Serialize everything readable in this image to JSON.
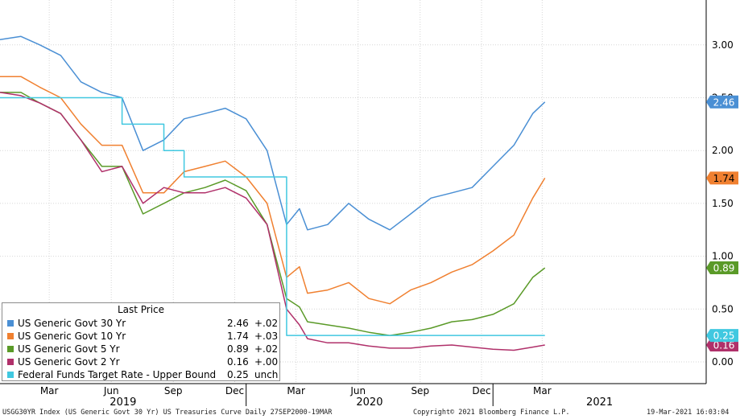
{
  "chart_data": {
    "type": "line",
    "title": "",
    "xlabel": "",
    "ylabel": "",
    "ylim": [
      -0.05,
      3.4
    ],
    "y_axis_position": "right",
    "y_ticks": [
      "0.00",
      "0.50",
      "1.00",
      "1.50",
      "2.00",
      "2.50",
      "3.00"
    ],
    "x_month_ticks": [
      "Mar",
      "Jun",
      "Sep",
      "Dec",
      "Mar",
      "Jun",
      "Sep",
      "Dec",
      "Mar"
    ],
    "x_year_labels": [
      "2019",
      "2020",
      "2021"
    ],
    "grid": true,
    "legend_position": "bottom-left",
    "x": [
      "2019-01-01",
      "2019-02-01",
      "2019-03-01",
      "2019-04-01",
      "2019-05-01",
      "2019-06-01",
      "2019-07-01",
      "2019-08-01",
      "2019-09-01",
      "2019-10-01",
      "2019-11-01",
      "2019-12-01",
      "2020-01-01",
      "2020-02-01",
      "2020-03-01",
      "2020-03-20",
      "2020-04-01",
      "2020-05-01",
      "2020-06-01",
      "2020-07-01",
      "2020-08-01",
      "2020-09-01",
      "2020-10-01",
      "2020-11-01",
      "2020-12-01",
      "2021-01-01",
      "2021-02-01",
      "2021-03-01",
      "2021-03-19"
    ],
    "series": [
      {
        "name": "US Generic Govt 30 Yr",
        "color": "#4a8fd4",
        "last": "2.46",
        "change": "+.02",
        "values": [
          3.05,
          3.08,
          3.0,
          2.9,
          2.65,
          2.55,
          2.5,
          2.0,
          2.1,
          2.3,
          2.35,
          2.4,
          2.3,
          2.0,
          1.3,
          1.45,
          1.25,
          1.3,
          1.5,
          1.35,
          1.25,
          1.4,
          1.55,
          1.6,
          1.65,
          1.85,
          2.05,
          2.35,
          2.46
        ]
      },
      {
        "name": "US Generic Govt 10 Yr",
        "color": "#f08030",
        "last": "1.74",
        "change": "+.03",
        "values": [
          2.7,
          2.7,
          2.6,
          2.5,
          2.25,
          2.05,
          2.05,
          1.6,
          1.6,
          1.8,
          1.85,
          1.9,
          1.75,
          1.5,
          0.8,
          0.9,
          0.65,
          0.68,
          0.75,
          0.6,
          0.55,
          0.68,
          0.75,
          0.85,
          0.92,
          1.05,
          1.2,
          1.55,
          1.74
        ]
      },
      {
        "name": "US Generic Govt 5 Yr",
        "color": "#5a9a28",
        "last": "0.89",
        "change": "+.02",
        "values": [
          2.55,
          2.55,
          2.45,
          2.35,
          2.1,
          1.85,
          1.85,
          1.4,
          1.5,
          1.6,
          1.65,
          1.72,
          1.62,
          1.3,
          0.6,
          0.52,
          0.38,
          0.35,
          0.32,
          0.28,
          0.25,
          0.28,
          0.32,
          0.38,
          0.4,
          0.45,
          0.55,
          0.8,
          0.89
        ]
      },
      {
        "name": "US Generic Govt 2 Yr",
        "color": "#b0306a",
        "last": "0.16",
        "change": "+.00",
        "values": [
          2.55,
          2.52,
          2.45,
          2.35,
          2.1,
          1.8,
          1.85,
          1.5,
          1.65,
          1.6,
          1.6,
          1.65,
          1.55,
          1.3,
          0.5,
          0.35,
          0.22,
          0.18,
          0.18,
          0.15,
          0.13,
          0.13,
          0.15,
          0.16,
          0.14,
          0.12,
          0.11,
          0.14,
          0.16
        ]
      },
      {
        "name": "Federal Funds Target Rate - Upper Bound",
        "color": "#40c8e0",
        "last": "0.25",
        "change": "unch",
        "values": [
          2.5,
          2.5,
          2.5,
          2.5,
          2.5,
          2.5,
          2.25,
          2.25,
          2.0,
          1.75,
          1.75,
          1.75,
          1.75,
          1.75,
          0.25,
          0.25,
          0.25,
          0.25,
          0.25,
          0.25,
          0.25,
          0.25,
          0.25,
          0.25,
          0.25,
          0.25,
          0.25,
          0.25,
          0.25
        ]
      }
    ]
  },
  "legend": {
    "title": "Last Price"
  },
  "footer": {
    "left": "USGG30YR Index (US Generic Govt 30 Yr) US Treasuries Curve  Daily 27SEP2000-19MAR",
    "center": "Copyright© 2021 Bloomberg Finance L.P.",
    "right": "19-Mar-2021 16:03:04"
  }
}
